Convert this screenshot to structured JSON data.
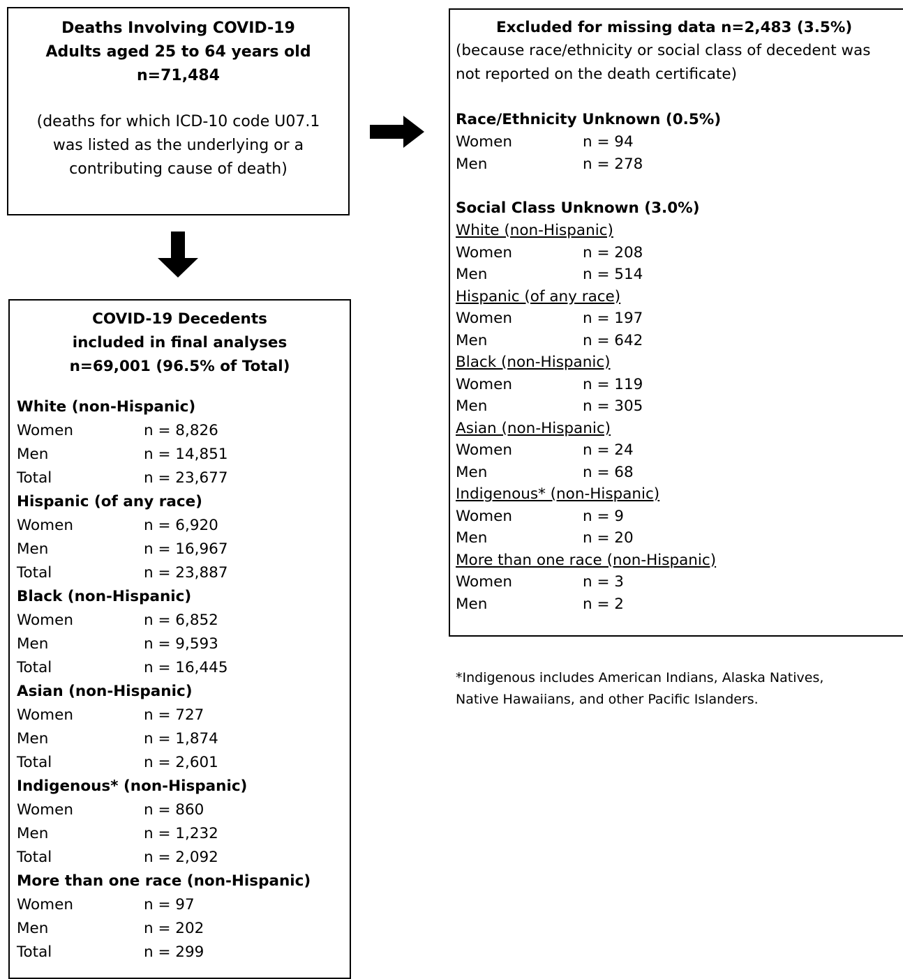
{
  "top_box": {
    "title_lines": [
      "Deaths Involving COVID-19",
      "Adults aged 25 to 64 years old",
      "n=71,484"
    ],
    "note_lines": [
      "(deaths for which ICD-10 code U07.1",
      "was listed as the underlying or a",
      "contributing cause of death)"
    ]
  },
  "final_box": {
    "title_lines": [
      "COVID-19 Decedents",
      "included in final analyses",
      "n=69,001 (96.5% of Total)"
    ],
    "groups": [
      {
        "name": "White (non-Hispanic)",
        "rows": [
          {
            "label": "Women",
            "value": "n = 8,826"
          },
          {
            "label": "Men",
            "value": "n = 14,851"
          },
          {
            "label": "Total",
            "value": "n = 23,677"
          }
        ]
      },
      {
        "name": "Hispanic (of any race)",
        "rows": [
          {
            "label": "Women",
            "value": "n = 6,920"
          },
          {
            "label": "Men",
            "value": "n = 16,967"
          },
          {
            "label": "Total",
            "value": "n = 23,887"
          }
        ]
      },
      {
        "name": "Black (non-Hispanic)",
        "rows": [
          {
            "label": "Women",
            "value": "n = 6,852"
          },
          {
            "label": "Men",
            "value": "n = 9,593"
          },
          {
            "label": "Total",
            "value": "n = 16,445"
          }
        ]
      },
      {
        "name": "Asian (non-Hispanic)",
        "rows": [
          {
            "label": "Women",
            "value": "n = 727"
          },
          {
            "label": "Men",
            "value": "n = 1,874"
          },
          {
            "label": "Total",
            "value": "n = 2,601"
          }
        ]
      },
      {
        "name": "Indigenous* (non-Hispanic)",
        "rows": [
          {
            "label": "Women",
            "value": "n = 860"
          },
          {
            "label": "Men",
            "value": "n = 1,232"
          },
          {
            "label": "Total",
            "value": "n = 2,092"
          }
        ]
      },
      {
        "name": "More than one race (non-Hispanic)",
        "rows": [
          {
            "label": "Women",
            "value": "n = 97"
          },
          {
            "label": "Men",
            "value": "n = 202"
          },
          {
            "label": "Total",
            "value": "n = 299"
          }
        ]
      }
    ]
  },
  "excluded_box": {
    "title": "Excluded for missing data  n=2,483 (3.5%)",
    "note_lines": [
      "(because race/ethnicity or social class of decedent was",
      "not reported on the death certificate)"
    ],
    "race_unknown": {
      "heading": "Race/Ethnicity Unknown (0.5%)",
      "rows": [
        {
          "label": "Women",
          "value": "n = 94"
        },
        {
          "label": "Men",
          "value": "n = 278"
        }
      ]
    },
    "class_unknown": {
      "heading": "Social Class Unknown (3.0%)",
      "groups": [
        {
          "name": "White (non-Hispanic)",
          "rows": [
            {
              "label": "Women",
              "value": "n = 208"
            },
            {
              "label": "Men",
              "value": "n = 514"
            }
          ]
        },
        {
          "name": "Hispanic (of any race)",
          "rows": [
            {
              "label": "Women",
              "value": "n = 197"
            },
            {
              "label": "Men",
              "value": "n = 642"
            }
          ]
        },
        {
          "name": "Black (non-Hispanic)",
          "rows": [
            {
              "label": "Women",
              "value": "n = 119"
            },
            {
              "label": "Men",
              "value": "n = 305"
            }
          ]
        },
        {
          "name": "Asian (non-Hispanic)",
          "rows": [
            {
              "label": "Women",
              "value": "n = 24"
            },
            {
              "label": "Men",
              "value": "n = 68"
            }
          ]
        },
        {
          "name": "Indigenous* (non-Hispanic)",
          "rows": [
            {
              "label": "Women",
              "value": "n = 9"
            },
            {
              "label": "Men",
              "value": "n = 20"
            }
          ]
        },
        {
          "name": "More than one race (non-Hispanic)",
          "rows": [
            {
              "label": "Women",
              "value": "n = 3"
            },
            {
              "label": "Men",
              "value": "n = 2"
            }
          ]
        }
      ]
    }
  },
  "footnote_lines": [
    "*Indigenous includes American Indians, Alaska Natives,",
    "Native Hawaiians, and other Pacific Islanders."
  ],
  "colors": {
    "ink": "#000000",
    "background": "#ffffff"
  }
}
